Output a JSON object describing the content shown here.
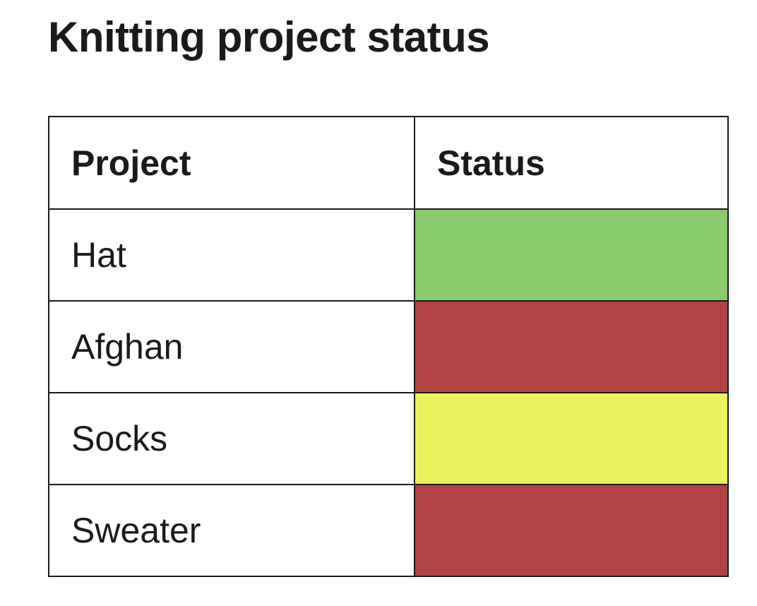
{
  "title": "Knitting project status",
  "table": {
    "headers": [
      "Project",
      "Status"
    ],
    "rows": [
      {
        "project": "Hat",
        "status_color": "#8acb6d"
      },
      {
        "project": "Afghan",
        "status_color": "#b14444"
      },
      {
        "project": "Socks",
        "status_color": "#ecf15e"
      },
      {
        "project": "Sweater",
        "status_color": "#b14444"
      }
    ]
  }
}
